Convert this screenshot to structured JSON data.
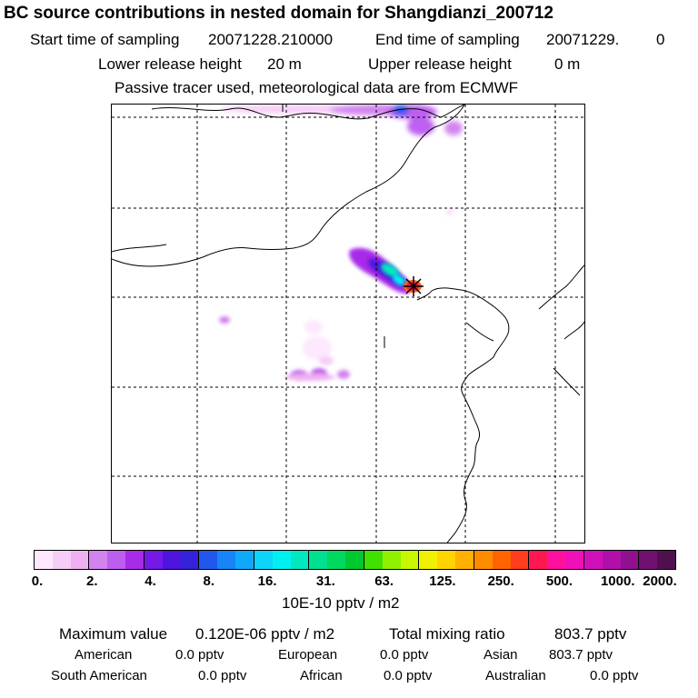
{
  "header": {
    "title": "BC  source contributions in nested domain for Shangdianzi_200712",
    "start_label": "Start time of sampling",
    "start_value": "20071228.210000",
    "end_label": "End time of sampling",
    "end_value": "20071229.",
    "end_value_tail": "0",
    "lower_label": "Lower release height",
    "lower_value": "20 m",
    "upper_label": "Upper release height",
    "upper_value": "0 m",
    "note": "Passive tracer used, meteorological data are from ECMWF"
  },
  "map": {
    "receptor_name": "Shangdianzi",
    "receptor_marker_icon": "star-marker-icon"
  },
  "colorbar": {
    "colors": [
      "#fde8fd",
      "#f6cdf6",
      "#eeb0f0",
      "#d283ee",
      "#be5ef0",
      "#a72ce8",
      "#7518e6",
      "#4c14dc",
      "#3322d8",
      "#2058ee",
      "#1884f5",
      "#10a8fa",
      "#0ed4fb",
      "#00f0f0",
      "#00e8c0",
      "#00e090",
      "#00d860",
      "#00c830",
      "#40e000",
      "#90f000",
      "#c8f800",
      "#f0f000",
      "#ffd400",
      "#ffb000",
      "#ff8c00",
      "#ff6400",
      "#ff3c1e",
      "#ff1850",
      "#ff10a0",
      "#f010b8",
      "#d010b8",
      "#b010a8",
      "#901090",
      "#701070",
      "#501050"
    ],
    "tick_labels": [
      "0.",
      "2.",
      "4.",
      "8.",
      "16.",
      "31.",
      "63.",
      "125.",
      "250.",
      "500.",
      "1000.",
      "2000."
    ],
    "unit": "10E-10 pptv / m2"
  },
  "stats": {
    "max_label": "Maximum value",
    "max_value": "0.120E-06 pptv / m2",
    "total_label": "Total mixing ratio",
    "total_value": "803.7 pptv"
  },
  "regions": [
    {
      "name": "American",
      "value": "0.0 pptv"
    },
    {
      "name": "European",
      "value": "0.0 pptv"
    },
    {
      "name": "Asian",
      "value": "803.7 pptv"
    },
    {
      "name": "South American",
      "value": "0.0 pptv"
    },
    {
      "name": "African",
      "value": "0.0 pptv"
    },
    {
      "name": "Australian",
      "value": "0.0 pptv"
    }
  ]
}
